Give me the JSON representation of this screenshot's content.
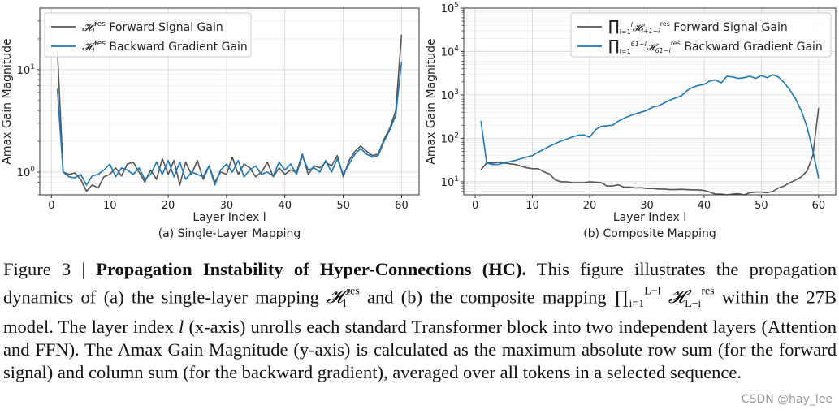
{
  "chart_data": [
    {
      "type": "line",
      "subtitle": "(a) Single-Layer Mapping",
      "xlabel": "Layer Index l",
      "ylabel": "Amax Gain Magnitude",
      "yscale": "log",
      "xlim": [
        -2,
        63
      ],
      "ylim": [
        0.6,
        40
      ],
      "xticks": [
        0,
        10,
        20,
        30,
        40,
        50,
        60
      ],
      "yticks": [
        1,
        10
      ],
      "ytick_labels": [
        "10^0",
        "10^1"
      ],
      "grid": true,
      "legend_position": "top-left",
      "series": [
        {
          "name": "H_l^res Forward Signal Gain",
          "color": "#555555",
          "x": [
            1,
            2,
            3,
            4,
            5,
            6,
            7,
            8,
            9,
            10,
            11,
            12,
            13,
            14,
            15,
            16,
            17,
            18,
            19,
            20,
            21,
            22,
            23,
            24,
            25,
            26,
            27,
            28,
            29,
            30,
            31,
            32,
            33,
            34,
            35,
            36,
            37,
            38,
            39,
            40,
            41,
            42,
            43,
            44,
            45,
            46,
            47,
            48,
            49,
            50,
            51,
            52,
            53,
            54,
            55,
            56,
            57,
            58,
            59,
            60
          ],
          "values": [
            16,
            1.0,
            0.95,
            0.98,
            0.85,
            0.65,
            0.75,
            0.7,
            0.9,
            0.95,
            1.1,
            0.92,
            1.2,
            1.25,
            1.0,
            0.8,
            1.05,
            0.85,
            1.35,
            0.95,
            1.3,
            0.75,
            1.25,
            0.95,
            1.3,
            0.85,
            1.15,
            0.8,
            1.0,
            0.95,
            1.4,
            0.95,
            1.2,
            1.1,
            0.9,
            1.0,
            1.25,
            0.9,
            1.1,
            0.95,
            1.05,
            1.0,
            1.5,
            0.95,
            1.15,
            1.1,
            1.25,
            1.15,
            1.45,
            0.9,
            1.3,
            1.6,
            1.8,
            1.6,
            1.45,
            1.5,
            2.1,
            2.7,
            4.0,
            22
          ]
        },
        {
          "name": "H_l^res Backward Gradient Gain",
          "color": "#1f77b4",
          "x": [
            1,
            2,
            3,
            4,
            5,
            6,
            7,
            8,
            9,
            10,
            11,
            12,
            13,
            14,
            15,
            16,
            17,
            18,
            19,
            20,
            21,
            22,
            23,
            24,
            25,
            26,
            27,
            28,
            29,
            30,
            31,
            32,
            33,
            34,
            35,
            36,
            37,
            38,
            39,
            40,
            41,
            42,
            43,
            44,
            45,
            46,
            47,
            48,
            49,
            50,
            51,
            52,
            53,
            54,
            55,
            56,
            57,
            58,
            59,
            60
          ],
          "values": [
            6.5,
            1.0,
            0.9,
            0.88,
            0.95,
            0.75,
            0.92,
            0.95,
            1.05,
            1.2,
            0.9,
            1.1,
            1.05,
            0.95,
            1.1,
            0.85,
            0.95,
            1.25,
            0.95,
            1.3,
            0.9,
            1.25,
            0.85,
            1.0,
            0.95,
            0.9,
            1.15,
            0.75,
            1.05,
            1.2,
            1.0,
            1.3,
            0.9,
            1.05,
            1.15,
            0.95,
            1.0,
            0.92,
            1.25,
            1.05,
            1.2,
            0.95,
            1.45,
            1.05,
            1.1,
            1.0,
            1.3,
            1.0,
            1.35,
            0.95,
            1.2,
            1.5,
            1.7,
            1.5,
            1.4,
            1.45,
            2.0,
            2.6,
            3.6,
            12
          ]
        }
      ]
    },
    {
      "type": "line",
      "subtitle": "(b) Composite Mapping",
      "xlabel": "Layer Index l",
      "ylabel": "Amax Gain Magnitude",
      "yscale": "log",
      "xlim": [
        -2,
        63
      ],
      "ylim": [
        5,
        100000
      ],
      "xticks": [
        0,
        10,
        20,
        30,
        40,
        50,
        60
      ],
      "yticks": [
        10,
        100,
        1000,
        10000,
        100000
      ],
      "ytick_labels": [
        "10^1",
        "10^2",
        "10^3",
        "10^4",
        "10^5"
      ],
      "grid": true,
      "legend_position": "top-right",
      "series": [
        {
          "name": "∏ i=1..l H_{l+1−i}^res Forward Signal Gain",
          "color": "#555555",
          "x": [
            1,
            2,
            3,
            4,
            5,
            6,
            7,
            8,
            9,
            10,
            11,
            12,
            13,
            14,
            15,
            16,
            17,
            18,
            19,
            20,
            21,
            22,
            23,
            24,
            25,
            26,
            27,
            28,
            29,
            30,
            31,
            32,
            33,
            34,
            35,
            36,
            37,
            38,
            39,
            40,
            41,
            42,
            43,
            44,
            45,
            46,
            47,
            48,
            49,
            50,
            51,
            52,
            53,
            54,
            55,
            56,
            57,
            58,
            59,
            60
          ],
          "values": [
            19,
            27,
            27,
            28,
            27,
            26,
            25,
            23,
            21,
            20,
            20,
            17,
            15,
            11,
            10,
            10,
            9.5,
            9.5,
            9.5,
            10,
            9.8,
            9.5,
            8,
            8,
            8.5,
            7.5,
            7.5,
            7.2,
            7.3,
            7.0,
            7.0,
            6.8,
            6.8,
            6.6,
            6.6,
            6.7,
            6.6,
            6.5,
            6.5,
            6.3,
            5.8,
            5.2,
            5.2,
            5.0,
            5.2,
            5.3,
            5.0,
            5.6,
            5.8,
            5.8,
            5.6,
            6.0,
            7.2,
            8.0,
            9.5,
            11,
            13,
            18,
            40,
            500
          ]
        },
        {
          "name": "∏ i=1..61−l H_{61−i}^res Backward Gradient Gain",
          "color": "#1f77b4",
          "x": [
            1,
            2,
            3,
            4,
            5,
            6,
            7,
            8,
            9,
            10,
            11,
            12,
            13,
            14,
            15,
            16,
            17,
            18,
            19,
            20,
            21,
            22,
            23,
            24,
            25,
            26,
            27,
            28,
            29,
            30,
            31,
            32,
            33,
            34,
            35,
            36,
            37,
            38,
            39,
            40,
            41,
            42,
            43,
            44,
            45,
            46,
            47,
            48,
            49,
            50,
            51,
            52,
            53,
            54,
            55,
            56,
            57,
            58,
            59,
            60
          ],
          "values": [
            250,
            27,
            25,
            25,
            27,
            29,
            31,
            34,
            37,
            40,
            48,
            56,
            66,
            76,
            86,
            96,
            108,
            118,
            120,
            106,
            158,
            188,
            196,
            200,
            248,
            290,
            330,
            368,
            400,
            440,
            520,
            560,
            650,
            760,
            850,
            950,
            1250,
            1500,
            1650,
            1750,
            2100,
            2200,
            1900,
            2700,
            2600,
            2400,
            2500,
            2700,
            2400,
            2800,
            2500,
            2900,
            2600,
            1900,
            1300,
            800,
            430,
            180,
            52,
            12
          ]
        }
      ]
    }
  ],
  "caption": {
    "figure_label": "Figure 3 |",
    "title": "Propagation Instability of Hyper-Connections (HC).",
    "body_1": "This figure illustrates the propagation dynamics of (a) the single-layer mapping",
    "body_2": "and (b) the composite mapping",
    "body_3": "within the 27B model. The layer index",
    "body_4": "(x-axis) unrolls each standard Transformer block into two independent layers (Attention and FFN). The Amax Gain Magnitude (y-axis) is calculated as the maximum absolute row sum (for the forward signal) and column sum (for the backward gradient), averaged over all tokens in a selected sequence."
  },
  "watermark": "CSDN @hay_lee"
}
